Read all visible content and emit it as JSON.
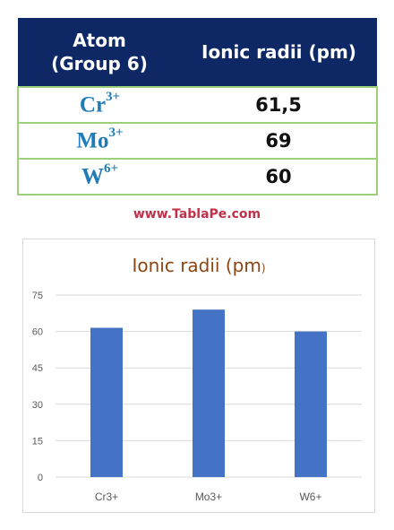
{
  "table": {
    "headers": [
      "Atom\n(Group 6)",
      "Ionic radii (pm)"
    ],
    "header_atom_line1": "Atom",
    "header_atom_line2": "(Group 6)",
    "header_value": "Ionic radii (pm)",
    "rows": [
      {
        "symbol": "Cr",
        "charge": "3+",
        "value": "61,5"
      },
      {
        "symbol": "Mo",
        "charge": "3+",
        "value": "69"
      },
      {
        "symbol": "W",
        "charge": "6+",
        "value": "60"
      }
    ]
  },
  "watermark": "www.TablaPe.com",
  "colors": {
    "header_bg": "#0e2765",
    "row_border": "#9bd179",
    "atom_text": "#1f7cb8",
    "bar": "#4472c4",
    "chart_title": "#8b4513",
    "watermark": "#c0304a"
  },
  "chart_data": {
    "type": "bar",
    "title_main": "Ionic radii (pm",
    "title_tail": ")",
    "categories": [
      "Cr3+",
      "Mo3+",
      "W6+"
    ],
    "values": [
      61.5,
      69,
      60
    ],
    "ylim": [
      0,
      75
    ],
    "yticks": [
      0,
      15,
      30,
      45,
      60,
      75
    ],
    "xlabel": "",
    "ylabel": "",
    "grid": true
  }
}
